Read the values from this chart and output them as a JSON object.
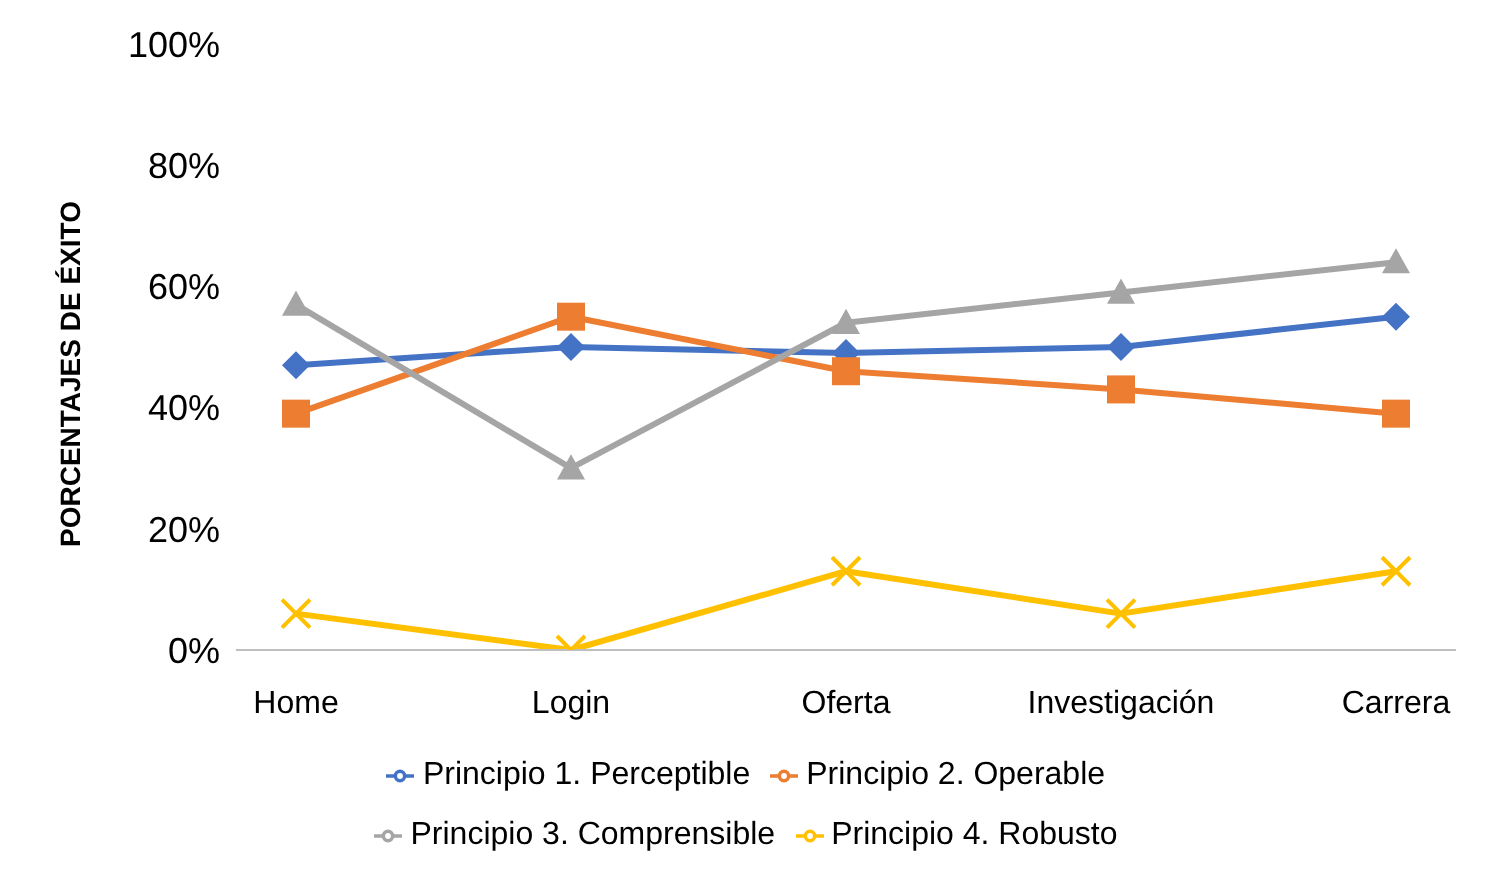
{
  "chart_data": {
    "type": "line",
    "ylabel": "PORCENTAJES DE ÉXITO",
    "categories": [
      "Home",
      "Login",
      "Oferta",
      "Investigación",
      "Carrera"
    ],
    "series": [
      {
        "name": "Principio 1. Perceptible",
        "color": "#4472c4",
        "marker": "diamond",
        "values": [
          47,
          50,
          49,
          50,
          55
        ]
      },
      {
        "name": "Principio 2. Operable",
        "color": "#ed7d31",
        "marker": "square",
        "values": [
          39,
          55,
          46,
          43,
          39
        ]
      },
      {
        "name": "Principio 3. Comprensible",
        "color": "#a5a5a5",
        "marker": "triangle",
        "values": [
          57,
          30,
          54,
          59,
          64
        ]
      },
      {
        "name": "Principio 4. Robusto",
        "color": "#ffc000",
        "marker": "cross",
        "values": [
          6,
          0,
          13,
          6,
          13
        ]
      }
    ],
    "ylim": [
      0,
      100
    ],
    "yticks": [
      {
        "value": 0,
        "label": "0%"
      },
      {
        "value": 20,
        "label": "20%"
      },
      {
        "value": 40,
        "label": "40%"
      },
      {
        "value": 60,
        "label": "60%"
      },
      {
        "value": 80,
        "label": "80%"
      },
      {
        "value": 100,
        "label": "100%"
      }
    ],
    "grid": false,
    "legend": "bottom"
  }
}
